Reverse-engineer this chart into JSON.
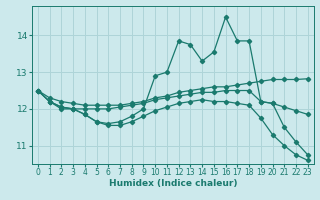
{
  "background_color": "#cce9ec",
  "grid_color": "#aed4d8",
  "line_color": "#1a7a6e",
  "xlabel": "Humidex (Indice chaleur)",
  "xlim": [
    -0.5,
    23.5
  ],
  "ylim": [
    10.5,
    14.8
  ],
  "yticks": [
    11,
    12,
    13,
    14
  ],
  "xticks": [
    0,
    1,
    2,
    3,
    4,
    5,
    6,
    7,
    8,
    9,
    10,
    11,
    12,
    13,
    14,
    15,
    16,
    17,
    18,
    19,
    20,
    21,
    22,
    23
  ],
  "series": [
    {
      "x": [
        0,
        1,
        2,
        3,
        4,
        5,
        6,
        7,
        8,
        9,
        10,
        11,
        12,
        13,
        14,
        15,
        16,
        17,
        18,
        19,
        20,
        21,
        22,
        23
      ],
      "y": [
        12.5,
        12.2,
        12.0,
        12.0,
        11.85,
        11.65,
        11.6,
        11.65,
        11.8,
        12.0,
        12.9,
        13.0,
        13.85,
        13.75,
        13.3,
        13.55,
        14.5,
        13.85,
        13.85,
        12.2,
        12.15,
        11.5,
        11.1,
        10.75
      ]
    },
    {
      "x": [
        0,
        1,
        2,
        3,
        4,
        5,
        6,
        7,
        8,
        9,
        10,
        11,
        12,
        13,
        14,
        15,
        16,
        17,
        18,
        19,
        20,
        21,
        22,
        23
      ],
      "y": [
        12.5,
        12.3,
        12.2,
        12.15,
        12.1,
        12.1,
        12.1,
        12.1,
        12.15,
        12.2,
        12.3,
        12.35,
        12.45,
        12.5,
        12.55,
        12.6,
        12.6,
        12.65,
        12.7,
        12.75,
        12.8,
        12.8,
        12.8,
        12.82
      ]
    },
    {
      "x": [
        0,
        1,
        2,
        3,
        4,
        5,
        6,
        7,
        8,
        9,
        10,
        11,
        12,
        13,
        14,
        15,
        16,
        17,
        18,
        19,
        20,
        21,
        22,
        23
      ],
      "y": [
        12.5,
        12.2,
        12.05,
        12.0,
        12.0,
        12.0,
        12.0,
        12.05,
        12.1,
        12.15,
        12.25,
        12.3,
        12.35,
        12.4,
        12.45,
        12.45,
        12.5,
        12.5,
        12.5,
        12.2,
        12.15,
        12.05,
        11.95,
        11.85
      ]
    },
    {
      "x": [
        0,
        1,
        2,
        3,
        4,
        5,
        6,
        7,
        8,
        9,
        10,
        11,
        12,
        13,
        14,
        15,
        16,
        17,
        18,
        19,
        20,
        21,
        22,
        23
      ],
      "y": [
        12.5,
        12.2,
        12.05,
        12.0,
        11.85,
        11.65,
        11.55,
        11.55,
        11.65,
        11.8,
        11.95,
        12.05,
        12.15,
        12.2,
        12.25,
        12.2,
        12.2,
        12.15,
        12.1,
        11.75,
        11.3,
        11.0,
        10.75,
        10.6
      ]
    }
  ]
}
